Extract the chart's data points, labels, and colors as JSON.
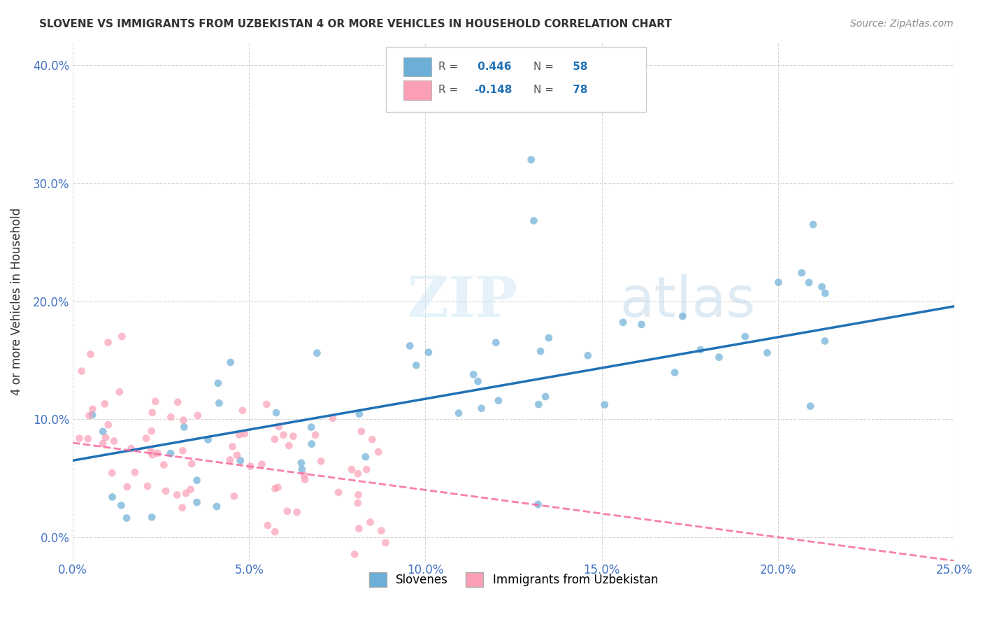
{
  "title": "SLOVENE VS IMMIGRANTS FROM UZBEKISTAN 4 OR MORE VEHICLES IN HOUSEHOLD CORRELATION CHART",
  "source": "Source: ZipAtlas.com",
  "ylabel": "4 or more Vehicles in Household",
  "xlim": [
    0.0,
    0.25
  ],
  "ylim": [
    -0.02,
    0.42
  ],
  "xticks": [
    0.0,
    0.05,
    0.1,
    0.15,
    0.2,
    0.25
  ],
  "yticks": [
    0.0,
    0.1,
    0.2,
    0.3,
    0.4
  ],
  "xtick_labels": [
    "0.0%",
    "5.0%",
    "10.0%",
    "15.0%",
    "20.0%",
    "25.0%"
  ],
  "ytick_labels": [
    "0.0%",
    "10.0%",
    "20.0%",
    "30.0%",
    "40.0%"
  ],
  "legend_label1": "Slovenes",
  "legend_label2": "Immigrants from Uzbekistan",
  "R1": 0.446,
  "N1": 58,
  "R2": -0.148,
  "N2": 78,
  "color_blue": "#6baed6",
  "color_pink": "#fa9fb5",
  "color_blue_dark": "#2171b5",
  "color_pink_dark": "#f768a1",
  "watermark_zip": "ZIP",
  "watermark_atlas": "atlas",
  "slope1": 0.5227,
  "intercept1": 0.065,
  "slope2": -0.4,
  "intercept2": 0.08
}
